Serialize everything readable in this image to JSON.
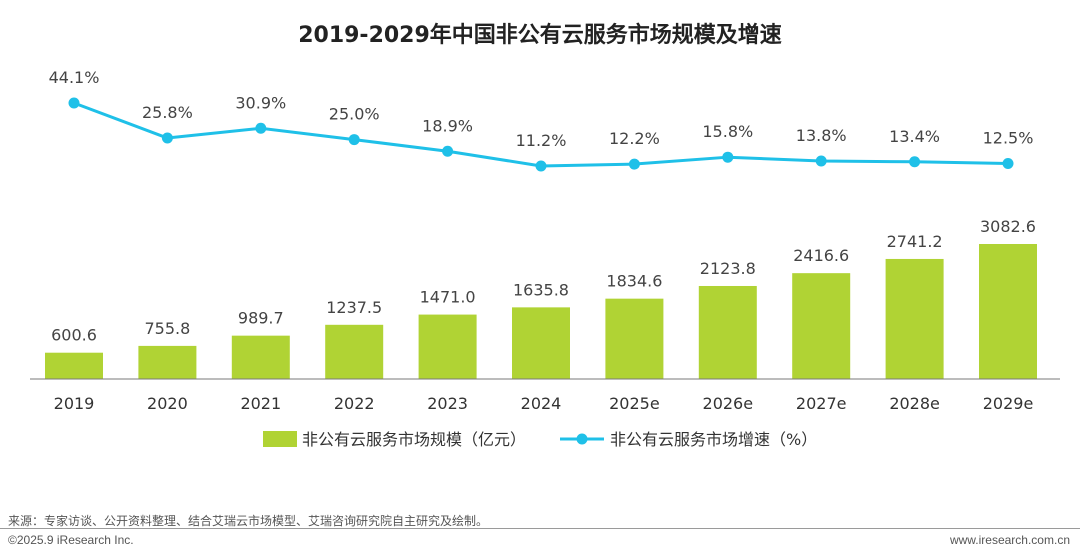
{
  "chart_data": {
    "type": "bar+line",
    "title": "2019-2029年中国非公有云服务市场规模及增速",
    "categories": [
      "2019",
      "2020",
      "2021",
      "2022",
      "2023",
      "2024",
      "2025e",
      "2026e",
      "2027e",
      "2028e",
      "2029e"
    ],
    "series": [
      {
        "name": "非公有云服务市场规模（亿元）",
        "type": "bar",
        "color": "#b0d334",
        "values": [
          600.6,
          755.8,
          989.7,
          1237.5,
          1471.0,
          1635.8,
          1834.6,
          2123.8,
          2416.6,
          2741.2,
          3082.6
        ],
        "labels": [
          "600.6",
          "755.8",
          "989.7",
          "1237.5",
          "1471.0",
          "1635.8",
          "1834.6",
          "2123.8",
          "2416.6",
          "2741.2",
          "3082.6"
        ]
      },
      {
        "name": "非公有云服务市场增速（%）",
        "type": "line",
        "color": "#1fc0e8",
        "values": [
          44.1,
          25.8,
          30.9,
          25.0,
          18.9,
          11.2,
          12.2,
          15.8,
          13.8,
          13.4,
          12.5
        ],
        "labels": [
          "44.1%",
          "25.8%",
          "30.9%",
          "25.0%",
          "18.9%",
          "11.2%",
          "12.2%",
          "15.8%",
          "13.8%",
          "13.4%",
          "12.5%"
        ]
      }
    ],
    "legend_position": "bottom-center",
    "grid": false
  },
  "footer": {
    "source": "来源：专家访谈、公开资料整理、结合艾瑞云市场模型、艾瑞咨询研究院自主研究及绘制。",
    "copyright": "©2025.9 iResearch Inc.",
    "website": "www.iresearch.com.cn"
  }
}
